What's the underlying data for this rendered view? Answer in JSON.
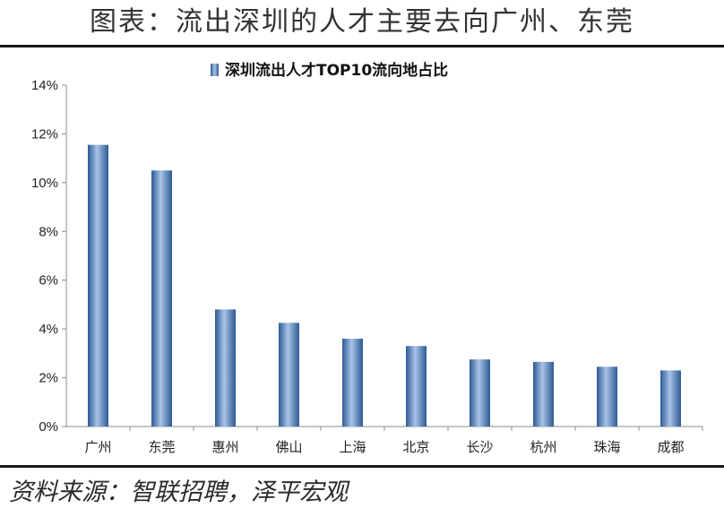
{
  "header": {
    "title": "图表：流出深圳的人才主要去向广州、东莞"
  },
  "footer": {
    "source": "资料来源：智联招聘，泽平宏观"
  },
  "colors": {
    "bar_dark": "#2c5a95",
    "bar_light": "#a9c3e6",
    "rule": "#1a1a1a"
  },
  "chart_data": {
    "type": "bar",
    "title": "深圳流出人才TOP10流向地占比",
    "legend_position": "top",
    "categories": [
      "广州",
      "东莞",
      "惠州",
      "佛山",
      "上海",
      "北京",
      "长沙",
      "杭州",
      "珠海",
      "成都"
    ],
    "series": [
      {
        "name": "深圳流出人才TOP10流向地占比",
        "values": [
          11.55,
          10.5,
          4.8,
          4.25,
          3.6,
          3.3,
          2.75,
          2.65,
          2.45,
          2.3
        ]
      }
    ],
    "xlabel": "",
    "ylabel": "",
    "ylim": [
      0,
      14
    ],
    "yticks": [
      0,
      2,
      4,
      6,
      8,
      10,
      12,
      14
    ],
    "ytick_labels": [
      "0%",
      "2%",
      "4%",
      "6%",
      "8%",
      "10%",
      "12%",
      "14%"
    ],
    "grid": false
  }
}
